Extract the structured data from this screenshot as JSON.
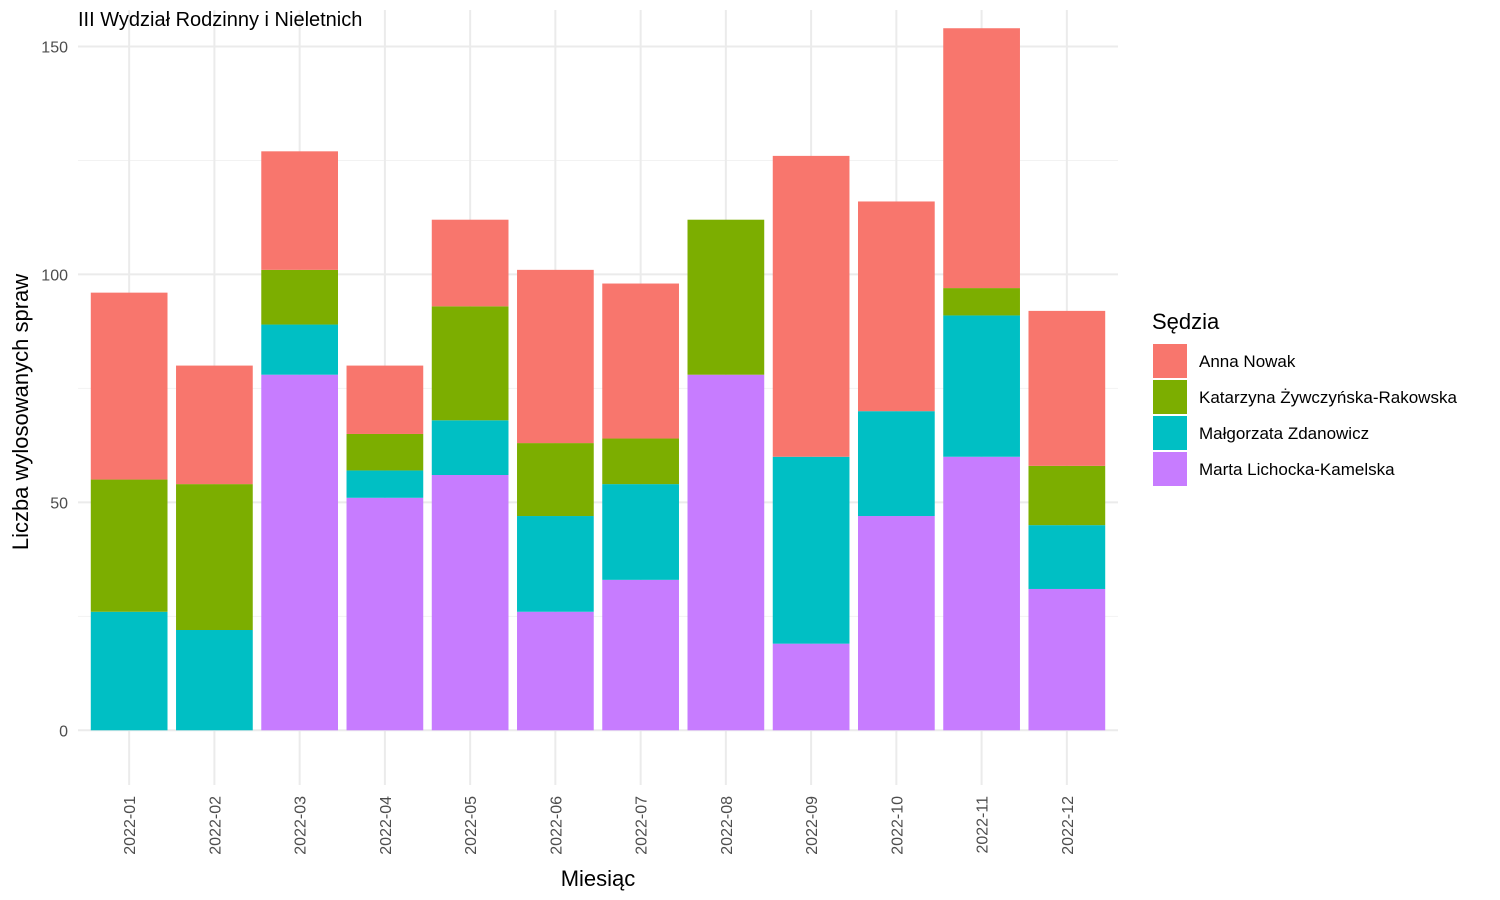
{
  "chart_data": {
    "type": "bar",
    "stacked": true,
    "title": "III Wydział Rodzinny i Nieletnich",
    "xlabel": "Miesiąc",
    "ylabel": "Liczba wylosowanych spraw",
    "ylim": [
      -12,
      158
    ],
    "yticks": [
      0,
      50,
      100,
      150
    ],
    "grid": true,
    "legend_title": "Sędzia",
    "legend_position": "right",
    "categories": [
      "2022-01",
      "2022-02",
      "2022-03",
      "2022-04",
      "2022-05",
      "2022-06",
      "2022-07",
      "2022-08",
      "2022-09",
      "2022-10",
      "2022-11",
      "2022-12"
    ],
    "series": [
      {
        "name": "Marta Lichocka-Kamelska",
        "color": "#C77CFF",
        "values": [
          0,
          0,
          78,
          51,
          56,
          26,
          33,
          78,
          19,
          47,
          60,
          31
        ]
      },
      {
        "name": "Małgorzata Zdanowicz",
        "color": "#00BFC4",
        "values": [
          26,
          22,
          11,
          6,
          12,
          21,
          21,
          0,
          41,
          23,
          31,
          14
        ]
      },
      {
        "name": "Katarzyna Żywczyńska-Rakowska",
        "color": "#7CAE00",
        "values": [
          29,
          32,
          12,
          8,
          25,
          16,
          10,
          34,
          0,
          0,
          6,
          13
        ]
      },
      {
        "name": "Anna Nowak",
        "color": "#F8766D",
        "values": [
          41,
          26,
          26,
          15,
          19,
          38,
          34,
          0,
          66,
          46,
          57,
          34
        ]
      }
    ],
    "legend_order": [
      "Anna Nowak",
      "Katarzyna Żywczyńska-Rakowska",
      "Małgorzata Zdanowicz",
      "Marta Lichocka-Kamelska"
    ]
  }
}
